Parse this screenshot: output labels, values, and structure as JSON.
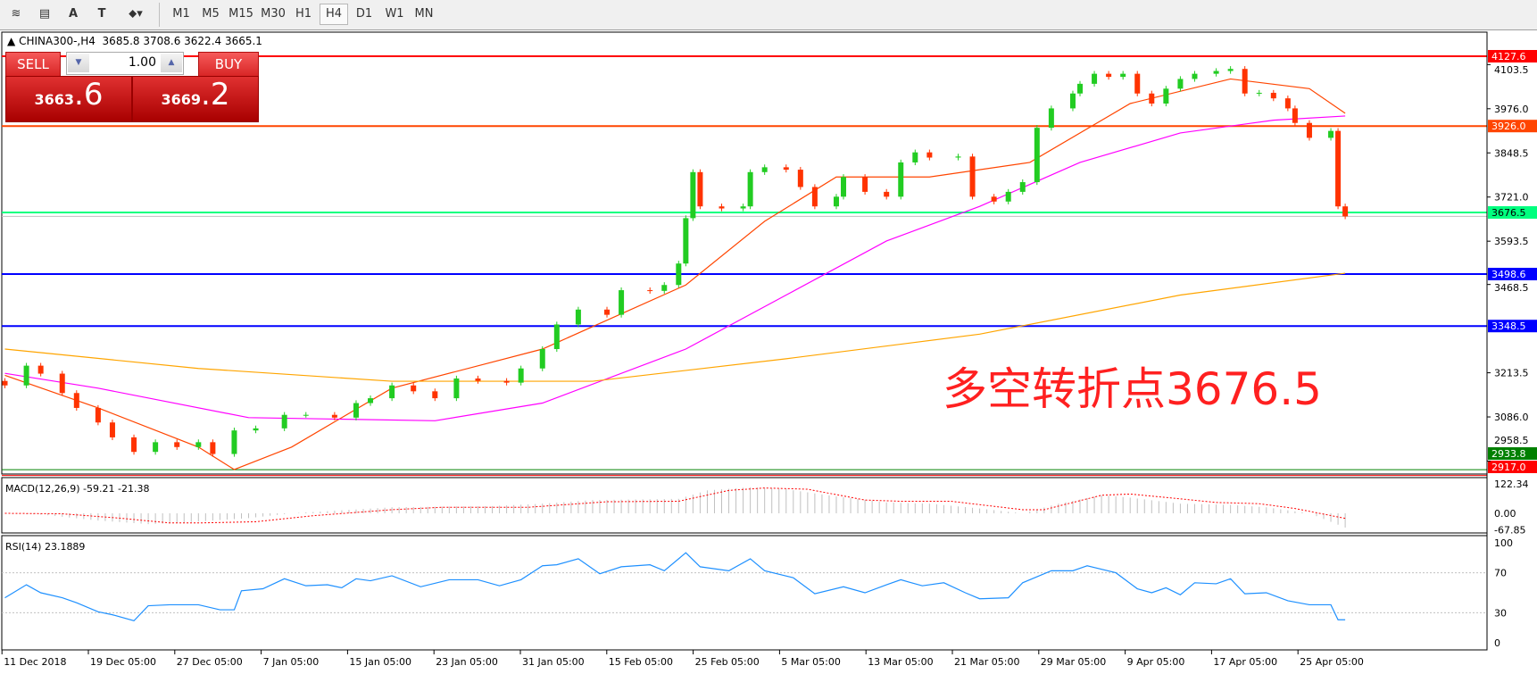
{
  "toolbar": {
    "icons": [
      "elliott-wave-icon",
      "fibonacci-icon",
      "text-icon",
      "text-label-icon",
      "arrows-dropdown-icon"
    ],
    "icon_glyphs": [
      "≋",
      "▤",
      "A",
      "T",
      "⬥▾"
    ],
    "timeframes": [
      "M1",
      "M5",
      "M15",
      "M30",
      "H1",
      "H4",
      "D1",
      "W1",
      "MN"
    ],
    "selected": "H4"
  },
  "info": {
    "symbol": "CHINA300-,H4",
    "ohlc": "3685.8 3708.6 3622.4 3665.1"
  },
  "trade": {
    "sell": "SELL",
    "buy": "BUY",
    "lot": "1.00",
    "sell_big": "3663",
    "sell_small": ".6",
    "buy_big": "3669",
    "buy_small": ".2"
  },
  "annotation": "多空转折点3676.5",
  "colors": {
    "bull": "#22cc22",
    "bear": "#ff3300",
    "ma_fast": "#ff4500",
    "ma_mid": "#ff00ff",
    "ma_slow": "#ffa500",
    "rsi": "#1e90ff",
    "macd_signal": "#ff0000",
    "macd_hist": "#c0c0c0"
  },
  "chart_data": {
    "type": "candlestick",
    "price_ticks": [
      "4103.5",
      "3976.0",
      "3848.5",
      "3721.0",
      "3593.5",
      "3468.5",
      "3213.5",
      "3086.0",
      "2958.5"
    ],
    "levels": [
      {
        "value": "4127.6",
        "color": "#ff0000"
      },
      {
        "value": "3926.0",
        "color": "#ff4500"
      },
      {
        "value": "3676.5",
        "color": "#00ff7f"
      },
      {
        "value": "3498.6",
        "color": "#0000ff"
      },
      {
        "value": "3348.5",
        "color": "#0000ff"
      },
      {
        "value": "2933.8",
        "color": "#008000"
      },
      {
        "value": "2917.0",
        "color": "#ff0000"
      }
    ],
    "date_labels": [
      "11 Dec 2018",
      "19 Dec 05:00",
      "27 Dec 05:00",
      "7 Jan 05:00",
      "15 Jan 05:00",
      "23 Jan 05:00",
      "31 Jan 05:00",
      "15 Feb 05:00",
      "25 Feb 05:00",
      "5 Mar 05:00",
      "13 Mar 05:00",
      "21 Mar 05:00",
      "29 Mar 05:00",
      "9 Apr 05:00",
      "17 Apr 05:00",
      "25 Apr 05:00"
    ],
    "first_open": 3190,
    "closes": [
      [
        0,
        3177
      ],
      [
        3,
        3234
      ],
      [
        5,
        3211
      ],
      [
        8,
        3155
      ],
      [
        10,
        3112
      ],
      [
        13,
        3070
      ],
      [
        15,
        3027
      ],
      [
        18,
        2985
      ],
      [
        21,
        3013
      ],
      [
        24,
        2999
      ],
      [
        27,
        3013
      ],
      [
        29,
        2979
      ],
      [
        32,
        3047
      ],
      [
        35,
        3053
      ],
      [
        39,
        3092
      ],
      [
        42,
        3092
      ],
      [
        46,
        3084
      ],
      [
        49,
        3126
      ],
      [
        51,
        3140
      ],
      [
        54,
        3177
      ],
      [
        57,
        3160
      ],
      [
        60,
        3140
      ],
      [
        63,
        3197
      ],
      [
        66,
        3190
      ],
      [
        70,
        3185
      ],
      [
        72,
        3226
      ],
      [
        75,
        3282
      ],
      [
        77,
        3353
      ],
      [
        80,
        3396
      ],
      [
        84,
        3381
      ],
      [
        86,
        3452
      ],
      [
        90,
        3450
      ],
      [
        92,
        3467
      ],
      [
        94,
        3529
      ],
      [
        95,
        3660
      ],
      [
        96,
        3793
      ],
      [
        97,
        3694
      ],
      [
        100,
        3688
      ],
      [
        103,
        3694
      ],
      [
        104,
        3793
      ],
      [
        106,
        3807
      ],
      [
        109,
        3800
      ],
      [
        111,
        3750
      ],
      [
        113,
        3694
      ],
      [
        116,
        3722
      ],
      [
        117,
        3779
      ],
      [
        120,
        3736
      ],
      [
        123,
        3722
      ],
      [
        125,
        3821
      ],
      [
        127,
        3850
      ],
      [
        129,
        3835
      ],
      [
        133,
        3838
      ],
      [
        135,
        3722
      ],
      [
        138,
        3708
      ],
      [
        140,
        3736
      ],
      [
        142,
        3764
      ],
      [
        144,
        3921
      ],
      [
        146,
        3977
      ],
      [
        149,
        4020
      ],
      [
        150,
        4048
      ],
      [
        152,
        4077
      ],
      [
        154,
        4068
      ],
      [
        156,
        4077
      ],
      [
        158,
        4020
      ],
      [
        160,
        3991
      ],
      [
        162,
        4034
      ],
      [
        164,
        4062
      ],
      [
        166,
        4077
      ],
      [
        169,
        4085
      ],
      [
        171,
        4091
      ],
      [
        173,
        4020
      ],
      [
        175,
        4022
      ],
      [
        177,
        4006
      ],
      [
        179,
        3977
      ],
      [
        180,
        3935
      ],
      [
        182,
        3892
      ],
      [
        185,
        3912
      ],
      [
        186,
        3694
      ],
      [
        187,
        3665.1
      ]
    ],
    "ma_fast": [
      [
        0,
        3206
      ],
      [
        13,
        3112
      ],
      [
        27,
        2999
      ],
      [
        32,
        2934
      ],
      [
        40,
        2999
      ],
      [
        54,
        3169
      ],
      [
        75,
        3282
      ],
      [
        95,
        3467
      ],
      [
        106,
        3651
      ],
      [
        116,
        3779
      ],
      [
        129,
        3779
      ],
      [
        143,
        3821
      ],
      [
        157,
        3991
      ],
      [
        171,
        4062
      ],
      [
        182,
        4034
      ],
      [
        187,
        3963
      ]
    ],
    "ma_mid": [
      [
        0,
        3212
      ],
      [
        13,
        3169
      ],
      [
        34,
        3084
      ],
      [
        60,
        3075
      ],
      [
        75,
        3126
      ],
      [
        95,
        3282
      ],
      [
        109,
        3438
      ],
      [
        123,
        3594
      ],
      [
        136,
        3694
      ],
      [
        150,
        3821
      ],
      [
        164,
        3906
      ],
      [
        177,
        3943
      ],
      [
        187,
        3955
      ]
    ],
    "ma_slow": [
      [
        0,
        3282
      ],
      [
        27,
        3226
      ],
      [
        54,
        3189
      ],
      [
        82,
        3189
      ],
      [
        109,
        3254
      ],
      [
        136,
        3325
      ],
      [
        164,
        3438
      ],
      [
        187,
        3501
      ]
    ],
    "macd": {
      "label": "MACD(12,26,9) -59.21 -21.38",
      "ticks": [
        "122.34",
        "0.00",
        "-67.85"
      ],
      "hist": [
        [
          0,
          0
        ],
        [
          5,
          -5
        ],
        [
          13,
          -30
        ],
        [
          20,
          -45
        ],
        [
          24,
          -40
        ],
        [
          34,
          -20
        ],
        [
          40,
          0
        ],
        [
          54,
          25
        ],
        [
          68,
          30
        ],
        [
          75,
          40
        ],
        [
          82,
          55
        ],
        [
          94,
          60
        ],
        [
          98,
          95
        ],
        [
          104,
          108
        ],
        [
          109,
          100
        ],
        [
          116,
          70
        ],
        [
          123,
          45
        ],
        [
          129,
          40
        ],
        [
          136,
          20
        ],
        [
          142,
          0
        ],
        [
          147,
          40
        ],
        [
          153,
          75
        ],
        [
          157,
          65
        ],
        [
          164,
          40
        ],
        [
          171,
          35
        ],
        [
          176,
          25
        ],
        [
          182,
          0
        ],
        [
          187,
          -59
        ]
      ],
      "signal": [
        [
          0,
          0
        ],
        [
          8,
          -2
        ],
        [
          16,
          -20
        ],
        [
          23,
          -40
        ],
        [
          27,
          -40
        ],
        [
          35,
          -35
        ],
        [
          43,
          -10
        ],
        [
          54,
          15
        ],
        [
          61,
          25
        ],
        [
          73,
          25
        ],
        [
          84,
          48
        ],
        [
          94,
          50
        ],
        [
          101,
          95
        ],
        [
          106,
          105
        ],
        [
          112,
          100
        ],
        [
          120,
          55
        ],
        [
          125,
          50
        ],
        [
          132,
          50
        ],
        [
          142,
          15
        ],
        [
          145,
          15
        ],
        [
          153,
          75
        ],
        [
          157,
          80
        ],
        [
          164,
          60
        ],
        [
          169,
          45
        ],
        [
          175,
          40
        ],
        [
          180,
          20
        ],
        [
          187,
          -21
        ]
      ]
    },
    "rsi": {
      "label": "RSI(14) 23.1889",
      "ticks": [
        "100",
        "70",
        "30",
        "0"
      ],
      "levels": [
        70,
        30
      ],
      "values": [
        [
          0,
          45
        ],
        [
          3,
          58
        ],
        [
          5,
          50
        ],
        [
          8,
          45
        ],
        [
          10,
          40
        ],
        [
          13,
          31
        ],
        [
          15,
          28
        ],
        [
          18,
          22
        ],
        [
          20,
          37
        ],
        [
          23,
          38
        ],
        [
          27,
          38
        ],
        [
          30,
          33
        ],
        [
          32,
          33
        ],
        [
          33,
          52
        ],
        [
          36,
          54
        ],
        [
          39,
          64
        ],
        [
          42,
          57
        ],
        [
          45,
          58
        ],
        [
          47,
          55
        ],
        [
          49,
          64
        ],
        [
          51,
          62
        ],
        [
          54,
          67
        ],
        [
          58,
          56
        ],
        [
          62,
          63
        ],
        [
          66,
          63
        ],
        [
          69,
          57
        ],
        [
          72,
          63
        ],
        [
          75,
          77
        ],
        [
          77,
          78
        ],
        [
          80,
          84
        ],
        [
          83,
          69
        ],
        [
          86,
          76
        ],
        [
          90,
          78
        ],
        [
          92,
          72
        ],
        [
          95,
          90
        ],
        [
          97,
          76
        ],
        [
          101,
          72
        ],
        [
          104,
          84
        ],
        [
          106,
          72
        ],
        [
          110,
          65
        ],
        [
          113,
          49
        ],
        [
          117,
          56
        ],
        [
          120,
          50
        ],
        [
          123,
          58
        ],
        [
          125,
          63
        ],
        [
          128,
          57
        ],
        [
          131,
          60
        ],
        [
          134,
          50
        ],
        [
          136,
          44
        ],
        [
          140,
          45
        ],
        [
          142,
          60
        ],
        [
          146,
          72
        ],
        [
          149,
          72
        ],
        [
          151,
          77
        ],
        [
          155,
          70
        ],
        [
          158,
          54
        ],
        [
          160,
          50
        ],
        [
          162,
          55
        ],
        [
          164,
          48
        ],
        [
          166,
          60
        ],
        [
          169,
          59
        ],
        [
          171,
          64
        ],
        [
          173,
          49
        ],
        [
          176,
          50
        ],
        [
          179,
          42
        ],
        [
          182,
          38
        ],
        [
          185,
          38
        ],
        [
          186,
          23
        ],
        [
          187,
          23
        ]
      ]
    }
  }
}
